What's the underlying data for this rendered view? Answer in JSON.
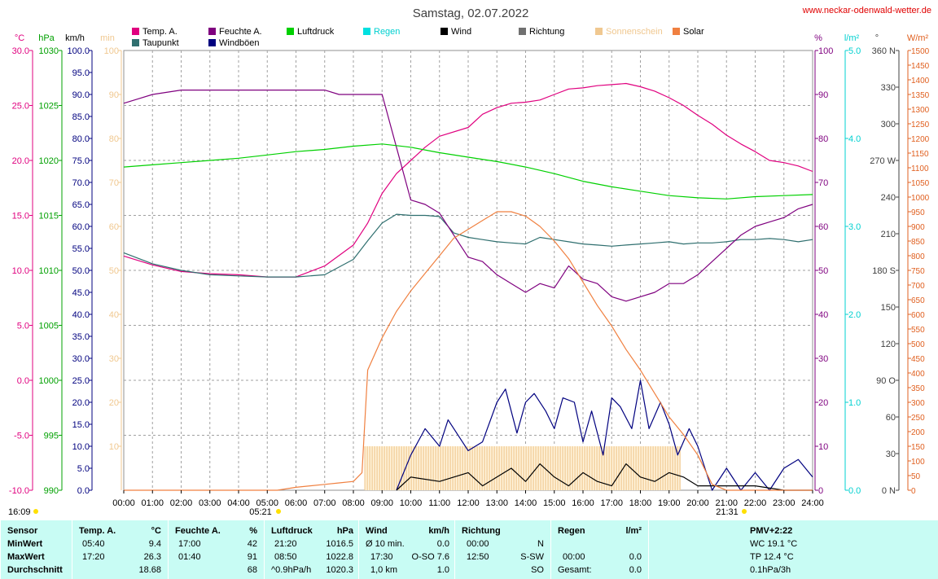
{
  "title": "Samstag, 02.07.2022",
  "website": "www.neckar-odenwald-wetter.de",
  "timestamp": "16:09",
  "sunrise": "05:21",
  "sunset": "21:31",
  "legend": [
    {
      "label": "Temp. A.",
      "color": "#e0007f"
    },
    {
      "label": "Taupunkt",
      "color": "#2f6f6f"
    },
    {
      "label": "Feuchte A.",
      "color": "#7f007f"
    },
    {
      "label": "Windböen",
      "color": "#00007f"
    },
    {
      "label": "Luftdruck",
      "color": "#00d000"
    },
    {
      "label": "Regen",
      "color": "#00e0e0"
    },
    {
      "label": "Wind",
      "color": "#000000"
    },
    {
      "label": "Richtung",
      "color": "#707070"
    },
    {
      "label": "Sonnenschein",
      "color": "#f0c890"
    },
    {
      "label": "Solar",
      "color": "#f08040"
    }
  ],
  "unit_labels": {
    "temp": "°C",
    "hpa": "hPa",
    "kmh": "km/h",
    "min": "min",
    "pct": "%",
    "rain": "l/m²",
    "dir": "°",
    "solar": "W/m²"
  },
  "chart_data": {
    "type": "line",
    "x_ticks": [
      "00:00",
      "01:00",
      "02:00",
      "03:00",
      "04:00",
      "05:00",
      "06:00",
      "07:00",
      "08:00",
      "09:00",
      "10:00",
      "11:00",
      "12:00",
      "13:00",
      "14:00",
      "15:00",
      "16:00",
      "17:00",
      "18:00",
      "19:00",
      "20:00",
      "21:00",
      "22:00",
      "23:00",
      "24:00"
    ],
    "axes": {
      "temp": {
        "ticks": [
          "30.0",
          "25.0",
          "20.0",
          "15.0",
          "10.0",
          "5.0",
          "0.0",
          "-5.0",
          "-10.0"
        ],
        "ylim": [
          -10,
          30
        ],
        "color": "#e0007f"
      },
      "hpa": {
        "ticks": [
          "1030",
          "1025",
          "1020",
          "1015",
          "1010",
          "1005",
          "1000",
          "995",
          "990"
        ],
        "ylim": [
          990,
          1030
        ],
        "color": "#00a000"
      },
      "kmh": {
        "ticks": [
          "100.0",
          "95.0",
          "90.0",
          "85.0",
          "80.0",
          "75.0",
          "70.0",
          "65.0",
          "60.0",
          "55.0",
          "50.0",
          "45.0",
          "40.0",
          "35.0",
          "30.0",
          "25.0",
          "20.0",
          "15.0",
          "10.0",
          "5.0",
          "0.0"
        ],
        "ylim": [
          0,
          100
        ],
        "color": "#00007f"
      },
      "min": {
        "ticks": [
          "100",
          "90",
          "80",
          "70",
          "60",
          "50",
          "40",
          "30",
          "20",
          "10"
        ],
        "ylim": [
          0,
          100
        ],
        "color": "#f0c890"
      },
      "pct": {
        "ticks": [
          "100",
          "90",
          "80",
          "70",
          "60",
          "50",
          "40",
          "30",
          "20",
          "10",
          "0"
        ],
        "ylim": [
          0,
          100
        ],
        "color": "#7f007f"
      },
      "rain": {
        "ticks": [
          "5.0",
          "4.0",
          "3.0",
          "2.0",
          "1.0",
          "0.0"
        ],
        "ylim": [
          0,
          5
        ],
        "color": "#00d0d0"
      },
      "dir": {
        "ticks": [
          "360 N",
          "330",
          "300",
          "270 W",
          "240",
          "210",
          "180 S",
          "150",
          "120",
          "90 O",
          "60",
          "30",
          "0 N"
        ],
        "ylim": [
          0,
          360
        ],
        "color": "#404040"
      },
      "solar": {
        "ticks": [
          "1500",
          "1450",
          "1400",
          "1350",
          "1300",
          "1250",
          "1200",
          "1150",
          "1100",
          "1050",
          "1000",
          "950",
          "900",
          "850",
          "800",
          "750",
          "700",
          "650",
          "600",
          "550",
          "500",
          "450",
          "400",
          "350",
          "300",
          "250",
          "200",
          "150",
          "100",
          "50",
          "0"
        ],
        "ylim": [
          0,
          1500
        ],
        "color": "#e06020"
      }
    },
    "series": [
      {
        "name": "Temp. A.",
        "axis": "temp",
        "color": "#e0007f",
        "x": [
          0,
          1,
          2,
          3,
          4,
          5,
          5.5,
          6,
          7,
          8,
          8.5,
          9,
          9.5,
          10,
          10.5,
          11,
          12,
          12.5,
          13,
          13.5,
          14,
          14.5,
          15,
          15.5,
          16,
          16.5,
          17,
          17.5,
          18,
          18.5,
          19,
          19.5,
          20,
          20.5,
          21,
          21.5,
          22,
          22.5,
          23,
          23.5,
          24
        ],
        "y": [
          11.3,
          10.5,
          9.9,
          9.7,
          9.6,
          9.4,
          9.4,
          9.4,
          10.4,
          12.3,
          14.3,
          17.0,
          18.8,
          20.0,
          21.2,
          22.2,
          23.0,
          24.2,
          24.8,
          25.2,
          25.3,
          25.5,
          26.0,
          26.5,
          26.6,
          26.8,
          26.9,
          27.0,
          26.7,
          26.3,
          25.7,
          25.0,
          24.1,
          23.3,
          22.3,
          21.5,
          20.8,
          20.0,
          19.8,
          19.5,
          19.0
        ]
      },
      {
        "name": "Taupunkt",
        "axis": "temp",
        "color": "#2f6f6f",
        "x": [
          0,
          1,
          2,
          3,
          4,
          5,
          6,
          7,
          8,
          8.5,
          9,
          9.5,
          10,
          10.5,
          11,
          11.5,
          12,
          12.5,
          13,
          13.5,
          14,
          14.5,
          15,
          15.5,
          16,
          16.5,
          17,
          17.5,
          18,
          18.5,
          19,
          19.5,
          20,
          20.5,
          21,
          21.5,
          22,
          22.5,
          23,
          23.5,
          24
        ],
        "y": [
          11.6,
          10.6,
          10.0,
          9.6,
          9.5,
          9.4,
          9.4,
          9.6,
          11.0,
          12.7,
          14.3,
          15.1,
          15.0,
          15.0,
          14.9,
          13.4,
          13.0,
          12.8,
          12.6,
          12.5,
          12.4,
          13.0,
          12.8,
          12.6,
          12.4,
          12.3,
          12.2,
          12.3,
          12.4,
          12.5,
          12.6,
          12.4,
          12.5,
          12.5,
          12.6,
          12.8,
          12.8,
          12.9,
          12.8,
          12.6,
          12.8
        ]
      },
      {
        "name": "Feuchte A.",
        "axis": "pct",
        "color": "#7f007f",
        "x": [
          0,
          0.5,
          1,
          2,
          3,
          4,
          5,
          6,
          7,
          7.5,
          8,
          9,
          9.5,
          10,
          10.5,
          11,
          11.5,
          12,
          12.5,
          13,
          13.5,
          14,
          14.5,
          15,
          15.5,
          16,
          16.5,
          17,
          17.5,
          18,
          18.5,
          19,
          19.5,
          20,
          20.5,
          21,
          21.5,
          22,
          22.5,
          23,
          23.5,
          24
        ],
        "y": [
          88,
          89,
          90,
          91,
          91,
          91,
          91,
          91,
          91,
          90,
          90,
          90,
          78,
          66,
          65,
          63,
          58,
          53,
          52,
          49,
          47,
          45,
          47,
          46,
          51,
          48,
          47,
          44,
          43,
          44,
          45,
          47,
          47,
          49,
          52,
          55,
          58,
          60,
          61,
          62,
          64,
          65
        ]
      },
      {
        "name": "Luftdruck",
        "axis": "hpa",
        "color": "#00d000",
        "x": [
          0,
          1,
          2,
          3,
          4,
          5,
          6,
          7,
          8,
          9,
          10,
          11,
          12,
          13,
          14,
          15,
          16,
          17,
          18,
          19,
          20,
          21,
          22,
          23,
          24
        ],
        "y": [
          1019.4,
          1019.6,
          1019.8,
          1020.0,
          1020.2,
          1020.5,
          1020.8,
          1021.0,
          1021.3,
          1021.5,
          1021.2,
          1020.7,
          1020.3,
          1019.9,
          1019.4,
          1018.8,
          1018.1,
          1017.6,
          1017.2,
          1016.8,
          1016.6,
          1016.5,
          1016.7,
          1016.8,
          1016.9
        ]
      },
      {
        "name": "Windböen",
        "axis": "kmh",
        "color": "#00007f",
        "x": [
          9.5,
          10,
          10.5,
          11,
          11.3,
          11.7,
          12,
          12.5,
          13,
          13.3,
          13.7,
          14,
          14.3,
          14.7,
          15,
          15.3,
          15.7,
          16,
          16.3,
          16.7,
          17,
          17.3,
          17.7,
          18,
          18.3,
          18.7,
          19,
          19.3,
          19.7,
          20,
          20.5,
          21,
          21.5,
          22,
          22.5,
          23,
          23.5,
          24
        ],
        "y": [
          0,
          8,
          14,
          10,
          16,
          12,
          9,
          11,
          20,
          23,
          13,
          20,
          22,
          18,
          14,
          21,
          20,
          11,
          18,
          8,
          21,
          19,
          14,
          25,
          14,
          20,
          15,
          8,
          14,
          10,
          0,
          5,
          0,
          4,
          0,
          5,
          7,
          3
        ]
      },
      {
        "name": "Wind",
        "axis": "kmh",
        "color": "#000000",
        "x": [
          9.5,
          10,
          11,
          12,
          12.5,
          13,
          13.5,
          14,
          14.5,
          15,
          15.5,
          16,
          16.5,
          17,
          17.5,
          18,
          18.5,
          19,
          19.5,
          20,
          21,
          22,
          23,
          24
        ],
        "y": [
          0,
          3,
          2,
          4,
          1,
          3,
          5,
          2,
          6,
          3,
          1,
          4,
          2,
          1,
          6,
          3,
          2,
          4,
          3,
          1,
          1,
          1,
          0,
          0
        ]
      },
      {
        "name": "Solar",
        "axis": "solar",
        "color": "#f08040",
        "x": [
          0,
          5.35,
          6,
          7,
          7.5,
          8,
          8.3,
          8.5,
          9,
          9.5,
          10,
          10.5,
          11,
          11.5,
          12,
          12.5,
          13,
          13.5,
          14,
          14.5,
          15,
          15.5,
          16,
          16.5,
          17,
          17.5,
          18,
          18.5,
          19,
          19.5,
          20,
          20.5,
          21,
          21.5,
          24
        ],
        "y": [
          0,
          0,
          10,
          20,
          25,
          30,
          60,
          410,
          520,
          610,
          680,
          740,
          800,
          860,
          890,
          920,
          950,
          950,
          935,
          900,
          850,
          790,
          710,
          630,
          560,
          480,
          410,
          330,
          250,
          190,
          120,
          20,
          0,
          0,
          0
        ]
      },
      {
        "name": "Sonnenschein",
        "axis": "min",
        "color": "#f0c890",
        "x_start": 8.4,
        "x_end": 19.4,
        "y": 10
      }
    ],
    "title": "Samstag, 02.07.2022"
  },
  "stats": {
    "headers": {
      "sensor": "Sensor",
      "temp": "Temp. A.",
      "temp_unit": "°C",
      "feuchte": "Feuchte A.",
      "feuchte_unit": "%",
      "luftdruck": "Luftdruck",
      "luftdruck_unit": "hPa",
      "wind": "Wind",
      "wind_unit": "km/h",
      "richtung": "Richtung",
      "regen": "Regen",
      "regen_unit": "l/m²",
      "pmv": "PMV+2:22"
    },
    "rows": [
      {
        "label": "MinWert",
        "temp_time": "05:40",
        "temp_val": "9.4",
        "feuchte_time": "17:00",
        "feuchte_val": "42",
        "druck_time": "21:20",
        "druck_val": "1016.5",
        "wind_label": "Ø 10 min.",
        "wind_val": "0.0",
        "richt_time": "00:00",
        "richt_val": "N",
        "regen_time": "",
        "regen_val": "",
        "pmv": "WC 19.1 °C"
      },
      {
        "label": "MaxWert",
        "temp_time": "17:20",
        "temp_val": "26.3",
        "feuchte_time": "01:40",
        "feuchte_val": "91",
        "druck_time": "08:50",
        "druck_val": "1022.8",
        "wind_label": "17:30",
        "wind_val": "O-SO 7.6",
        "richt_time": "12:50",
        "richt_val": "S-SW",
        "regen_time": "00:00",
        "regen_val": "0.0",
        "pmv": "TP 12.4 °C"
      },
      {
        "label": "Durchschnitt",
        "temp_time": "",
        "temp_val": "18.68",
        "feuchte_time": "",
        "feuchte_val": "68",
        "druck_time": "^0.9hPa/h",
        "druck_val": "1020.3",
        "wind_label": "1,0 km",
        "wind_val": "1.0",
        "richt_time": "",
        "richt_val": "SO",
        "regen_time": "Gesamt:",
        "regen_val": "0.0",
        "pmv": "0.1hPa/3h"
      }
    ]
  }
}
